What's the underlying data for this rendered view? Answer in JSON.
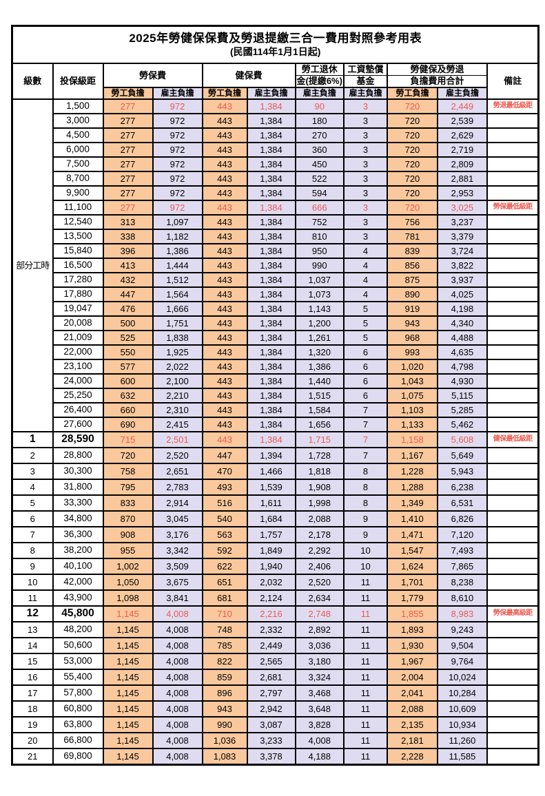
{
  "title": "2025年勞健保保費及勞退提繳三合一費用對照參考用表",
  "subtitle": "(民國114年1月1日起)",
  "header": {
    "level": "級數",
    "bracket": "投保級距",
    "labor_insurance": "勞保費",
    "health_insurance": "健保費",
    "pension_line1": "勞工退休",
    "pension_line2": "金(提繳6%)",
    "wage_fund_line1": "工資墊償",
    "wage_fund_line2": "基金",
    "total_line1": "勞健保及勞退",
    "total_line2": "負擔費用合計",
    "remark": "備註",
    "employee_share": "勞工負擔",
    "employer_share": "雇主負擔"
  },
  "part_time_label": "部分工時",
  "colors": {
    "employee_bg": "#F9C89C",
    "employer_bg": "#DFDCF1",
    "highlight_text": "#EE5A50",
    "border": "#000000"
  },
  "rows": [
    {
      "level": "",
      "bracket": "1,500",
      "values": [
        "277",
        "972",
        "443",
        "1,384",
        "90",
        "3",
        "720",
        "2,449"
      ],
      "remark": "勞退最低級距",
      "highlight": true
    },
    {
      "level": "",
      "bracket": "3,000",
      "values": [
        "277",
        "972",
        "443",
        "1,384",
        "180",
        "3",
        "720",
        "2,539"
      ],
      "remark": ""
    },
    {
      "level": "",
      "bracket": "4,500",
      "values": [
        "277",
        "972",
        "443",
        "1,384",
        "270",
        "3",
        "720",
        "2,629"
      ],
      "remark": ""
    },
    {
      "level": "",
      "bracket": "6,000",
      "values": [
        "277",
        "972",
        "443",
        "1,384",
        "360",
        "3",
        "720",
        "2,719"
      ],
      "remark": ""
    },
    {
      "level": "",
      "bracket": "7,500",
      "values": [
        "277",
        "972",
        "443",
        "1,384",
        "450",
        "3",
        "720",
        "2,809"
      ],
      "remark": ""
    },
    {
      "level": "",
      "bracket": "8,700",
      "values": [
        "277",
        "972",
        "443",
        "1,384",
        "522",
        "3",
        "720",
        "2,881"
      ],
      "remark": ""
    },
    {
      "level": "",
      "bracket": "9,900",
      "values": [
        "277",
        "972",
        "443",
        "1,384",
        "594",
        "3",
        "720",
        "2,953"
      ],
      "remark": ""
    },
    {
      "level": "",
      "bracket": "11,100",
      "values": [
        "277",
        "972",
        "443",
        "1,384",
        "666",
        "3",
        "720",
        "3,025"
      ],
      "remark": "勞保最低級距",
      "highlight": true
    },
    {
      "level": "",
      "bracket": "12,540",
      "values": [
        "313",
        "1,097",
        "443",
        "1,384",
        "752",
        "3",
        "756",
        "3,237"
      ],
      "remark": ""
    },
    {
      "level": "",
      "bracket": "13,500",
      "values": [
        "338",
        "1,182",
        "443",
        "1,384",
        "810",
        "3",
        "781",
        "3,379"
      ],
      "remark": ""
    },
    {
      "level": "",
      "bracket": "15,840",
      "values": [
        "396",
        "1,386",
        "443",
        "1,384",
        "950",
        "4",
        "839",
        "3,724"
      ],
      "remark": ""
    },
    {
      "level": "",
      "bracket": "16,500",
      "values": [
        "413",
        "1,444",
        "443",
        "1,384",
        "990",
        "4",
        "856",
        "3,822"
      ],
      "remark": ""
    },
    {
      "level": "",
      "bracket": "17,280",
      "values": [
        "432",
        "1,512",
        "443",
        "1,384",
        "1,037",
        "4",
        "875",
        "3,937"
      ],
      "remark": ""
    },
    {
      "level": "",
      "bracket": "17,880",
      "values": [
        "447",
        "1,564",
        "443",
        "1,384",
        "1,073",
        "4",
        "890",
        "4,025"
      ],
      "remark": ""
    },
    {
      "level": "",
      "bracket": "19,047",
      "values": [
        "476",
        "1,666",
        "443",
        "1,384",
        "1,143",
        "5",
        "919",
        "4,198"
      ],
      "remark": ""
    },
    {
      "level": "",
      "bracket": "20,008",
      "values": [
        "500",
        "1,751",
        "443",
        "1,384",
        "1,200",
        "5",
        "943",
        "4,340"
      ],
      "remark": ""
    },
    {
      "level": "",
      "bracket": "21,009",
      "values": [
        "525",
        "1,838",
        "443",
        "1,384",
        "1,261",
        "5",
        "968",
        "4,488"
      ],
      "remark": ""
    },
    {
      "level": "",
      "bracket": "22,000",
      "values": [
        "550",
        "1,925",
        "443",
        "1,384",
        "1,320",
        "6",
        "993",
        "4,635"
      ],
      "remark": ""
    },
    {
      "level": "",
      "bracket": "23,100",
      "values": [
        "577",
        "2,022",
        "443",
        "1,384",
        "1,386",
        "6",
        "1,020",
        "4,798"
      ],
      "remark": ""
    },
    {
      "level": "",
      "bracket": "24,000",
      "values": [
        "600",
        "2,100",
        "443",
        "1,384",
        "1,440",
        "6",
        "1,043",
        "4,930"
      ],
      "remark": ""
    },
    {
      "level": "",
      "bracket": "25,250",
      "values": [
        "632",
        "2,210",
        "443",
        "1,384",
        "1,515",
        "6",
        "1,075",
        "5,115"
      ],
      "remark": ""
    },
    {
      "level": "",
      "bracket": "26,400",
      "values": [
        "660",
        "2,310",
        "443",
        "1,384",
        "1,584",
        "7",
        "1,103",
        "5,285"
      ],
      "remark": ""
    },
    {
      "level": "",
      "bracket": "27,600",
      "values": [
        "690",
        "2,415",
        "443",
        "1,384",
        "1,656",
        "7",
        "1,133",
        "5,462"
      ],
      "remark": ""
    },
    {
      "level": "1",
      "bracket": "28,590",
      "values": [
        "715",
        "2,501",
        "443",
        "1,384",
        "1,715",
        "7",
        "1,158",
        "5,608"
      ],
      "remark": "健保最低級距",
      "highlight": true,
      "emph": true
    },
    {
      "level": "2",
      "bracket": "28,800",
      "values": [
        "720",
        "2,520",
        "447",
        "1,394",
        "1,728",
        "7",
        "1,167",
        "5,649"
      ],
      "remark": ""
    },
    {
      "level": "3",
      "bracket": "30,300",
      "values": [
        "758",
        "2,651",
        "470",
        "1,466",
        "1,818",
        "8",
        "1,228",
        "5,943"
      ],
      "remark": ""
    },
    {
      "level": "4",
      "bracket": "31,800",
      "values": [
        "795",
        "2,783",
        "493",
        "1,539",
        "1,908",
        "8",
        "1,288",
        "6,238"
      ],
      "remark": ""
    },
    {
      "level": "5",
      "bracket": "33,300",
      "values": [
        "833",
        "2,914",
        "516",
        "1,611",
        "1,998",
        "8",
        "1,349",
        "6,531"
      ],
      "remark": ""
    },
    {
      "level": "6",
      "bracket": "34,800",
      "values": [
        "870",
        "3,045",
        "540",
        "1,684",
        "2,088",
        "9",
        "1,410",
        "6,826"
      ],
      "remark": ""
    },
    {
      "level": "7",
      "bracket": "36,300",
      "values": [
        "908",
        "3,176",
        "563",
        "1,757",
        "2,178",
        "9",
        "1,471",
        "7,120"
      ],
      "remark": ""
    },
    {
      "level": "8",
      "bracket": "38,200",
      "values": [
        "955",
        "3,342",
        "592",
        "1,849",
        "2,292",
        "10",
        "1,547",
        "7,493"
      ],
      "remark": ""
    },
    {
      "level": "9",
      "bracket": "40,100",
      "values": [
        "1,002",
        "3,509",
        "622",
        "1,940",
        "2,406",
        "10",
        "1,624",
        "7,865"
      ],
      "remark": ""
    },
    {
      "level": "10",
      "bracket": "42,000",
      "values": [
        "1,050",
        "3,675",
        "651",
        "2,032",
        "2,520",
        "11",
        "1,701",
        "8,238"
      ],
      "remark": ""
    },
    {
      "level": "11",
      "bracket": "43,900",
      "values": [
        "1,098",
        "3,841",
        "681",
        "2,124",
        "2,634",
        "11",
        "1,779",
        "8,610"
      ],
      "remark": ""
    },
    {
      "level": "12",
      "bracket": "45,800",
      "values": [
        "1,145",
        "4,008",
        "710",
        "2,216",
        "2,748",
        "11",
        "1,855",
        "8,983"
      ],
      "remark": "勞保最高級距",
      "highlight": true,
      "emph": true
    },
    {
      "level": "13",
      "bracket": "48,200",
      "values": [
        "1,145",
        "4,008",
        "748",
        "2,332",
        "2,892",
        "11",
        "1,893",
        "9,243"
      ],
      "remark": ""
    },
    {
      "level": "14",
      "bracket": "50,600",
      "values": [
        "1,145",
        "4,008",
        "785",
        "2,449",
        "3,036",
        "11",
        "1,930",
        "9,504"
      ],
      "remark": ""
    },
    {
      "level": "15",
      "bracket": "53,000",
      "values": [
        "1,145",
        "4,008",
        "822",
        "2,565",
        "3,180",
        "11",
        "1,967",
        "9,764"
      ],
      "remark": ""
    },
    {
      "level": "16",
      "bracket": "55,400",
      "values": [
        "1,145",
        "4,008",
        "859",
        "2,681",
        "3,324",
        "11",
        "2,004",
        "10,024"
      ],
      "remark": ""
    },
    {
      "level": "17",
      "bracket": "57,800",
      "values": [
        "1,145",
        "4,008",
        "896",
        "2,797",
        "3,468",
        "11",
        "2,041",
        "10,284"
      ],
      "remark": ""
    },
    {
      "level": "18",
      "bracket": "60,800",
      "values": [
        "1,145",
        "4,008",
        "943",
        "2,942",
        "3,648",
        "11",
        "2,088",
        "10,609"
      ],
      "remark": ""
    },
    {
      "level": "19",
      "bracket": "63,800",
      "values": [
        "1,145",
        "4,008",
        "990",
        "3,087",
        "3,828",
        "11",
        "2,135",
        "10,934"
      ],
      "remark": ""
    },
    {
      "level": "20",
      "bracket": "66,800",
      "values": [
        "1,145",
        "4,008",
        "1,036",
        "3,233",
        "4,008",
        "11",
        "2,181",
        "11,260"
      ],
      "remark": ""
    },
    {
      "level": "21",
      "bracket": "69,800",
      "values": [
        "1,145",
        "4,008",
        "1,083",
        "3,378",
        "4,188",
        "11",
        "2,228",
        "11,585"
      ],
      "remark": ""
    }
  ]
}
